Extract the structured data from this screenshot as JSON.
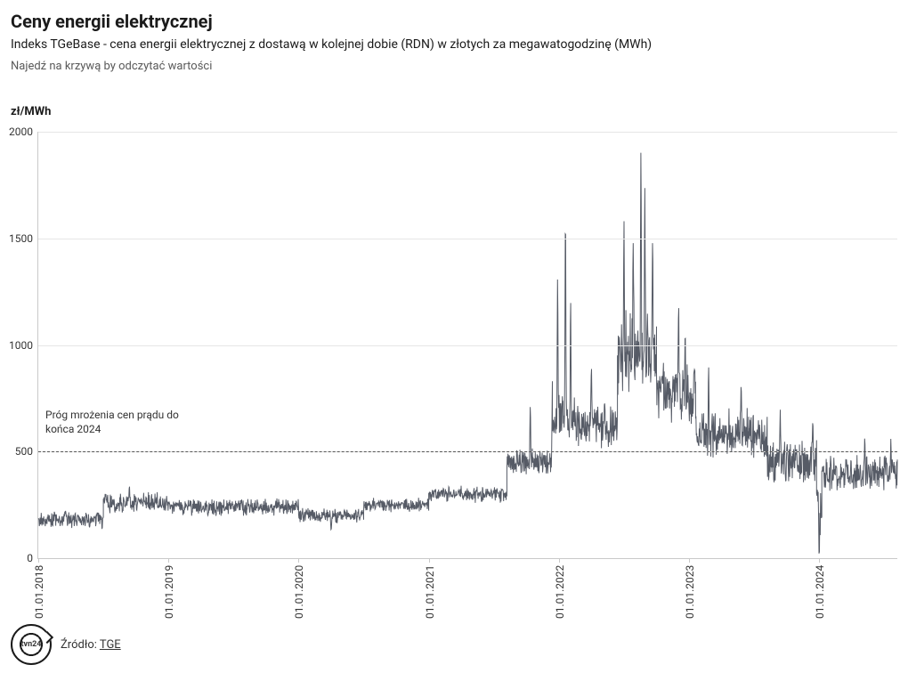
{
  "header": {
    "title": "Ceny energii elektrycznej",
    "subtitle": "Indeks TGeBase - cena energii elektrycznej z dostawą w kolejnej dobie (RDN) w złotych za megawatogodzinę (MWh)",
    "hint": "Najedź na krzywą by odczytać wartości"
  },
  "chart": {
    "type": "line",
    "y_axis_title": "zł/MWh",
    "ylim": [
      0,
      2000
    ],
    "y_ticks": [
      0,
      500,
      1000,
      1500,
      2000
    ],
    "x_domain_years": [
      2018.0,
      2024.6
    ],
    "x_ticks": [
      {
        "pos": 2018.0,
        "label": "01.01.2018"
      },
      {
        "pos": 2019.0,
        "label": "01.01.2019"
      },
      {
        "pos": 2020.0,
        "label": "01.01.2020"
      },
      {
        "pos": 2021.0,
        "label": "01.01.2021"
      },
      {
        "pos": 2022.0,
        "label": "01.01.2022"
      },
      {
        "pos": 2023.0,
        "label": "01.01.2023"
      },
      {
        "pos": 2024.0,
        "label": "01.01.2024"
      }
    ],
    "threshold": {
      "value": 500,
      "label": "Próg mrożenia cen prądu do końca 2024"
    },
    "line_color": "#565b66",
    "line_width": 1,
    "grid_color": "#e6e6e6",
    "axis_color": "#c9c9c9",
    "background_color": "#ffffff",
    "threshold_color": "#565656",
    "title_fontsize": 20,
    "subtitle_fontsize": 14,
    "tick_fontsize": 12,
    "series": {
      "segments": [
        {
          "from": 2018.0,
          "to": 2018.5,
          "base": 180,
          "noise": 55,
          "spikes": []
        },
        {
          "from": 2018.5,
          "to": 2019.0,
          "base": 260,
          "noise": 70,
          "spikes": [
            {
              "at": 2018.7,
              "val": 340
            }
          ]
        },
        {
          "from": 2019.0,
          "to": 2020.0,
          "base": 240,
          "noise": 55,
          "spikes": []
        },
        {
          "from": 2020.0,
          "to": 2020.5,
          "base": 200,
          "noise": 50,
          "spikes": [
            {
              "at": 2020.25,
              "val": 130
            }
          ]
        },
        {
          "from": 2020.5,
          "to": 2021.0,
          "base": 250,
          "noise": 45,
          "spikes": []
        },
        {
          "from": 2021.0,
          "to": 2021.6,
          "base": 300,
          "noise": 55,
          "spikes": []
        },
        {
          "from": 2021.6,
          "to": 2021.95,
          "base": 450,
          "noise": 90,
          "spikes": [
            {
              "at": 2021.78,
              "val": 720
            },
            {
              "at": 2021.95,
              "val": 830
            }
          ]
        },
        {
          "from": 2021.95,
          "to": 2022.15,
          "base": 650,
          "noise": 160,
          "spikes": [
            {
              "at": 2021.99,
              "val": 1320
            },
            {
              "at": 2022.05,
              "val": 1630
            },
            {
              "at": 2022.09,
              "val": 1220
            }
          ]
        },
        {
          "from": 2022.15,
          "to": 2022.45,
          "base": 620,
          "noise": 150,
          "spikes": [
            {
              "at": 2022.25,
              "val": 900
            }
          ]
        },
        {
          "from": 2022.45,
          "to": 2022.75,
          "base": 950,
          "noise": 280,
          "spikes": [
            {
              "at": 2022.5,
              "val": 1590
            },
            {
              "at": 2022.57,
              "val": 1490
            },
            {
              "at": 2022.63,
              "val": 1920
            },
            {
              "at": 2022.66,
              "val": 1740
            },
            {
              "at": 2022.72,
              "val": 1500
            }
          ]
        },
        {
          "from": 2022.75,
          "to": 2023.05,
          "base": 780,
          "noise": 200,
          "spikes": [
            {
              "at": 2022.92,
              "val": 1200
            },
            {
              "at": 2022.97,
              "val": 1050
            }
          ]
        },
        {
          "from": 2023.05,
          "to": 2023.6,
          "base": 580,
          "noise": 160,
          "spikes": [
            {
              "at": 2023.15,
              "val": 900
            },
            {
              "at": 2023.4,
              "val": 820
            }
          ]
        },
        {
          "from": 2023.6,
          "to": 2023.98,
          "base": 450,
          "noise": 150,
          "spikes": [
            {
              "at": 2023.7,
              "val": 700
            },
            {
              "at": 2023.95,
              "val": 640
            }
          ]
        },
        {
          "from": 2023.98,
          "to": 2024.02,
          "base": 250,
          "noise": 180,
          "spikes": [
            {
              "at": 2024.0,
              "val": 5
            }
          ]
        },
        {
          "from": 2024.02,
          "to": 2024.6,
          "base": 400,
          "noise": 120,
          "spikes": [
            {
              "at": 2024.35,
              "val": 570
            },
            {
              "at": 2024.55,
              "val": 560
            }
          ]
        }
      ],
      "points_per_year": 360
    }
  },
  "footer": {
    "logo_text": "tvn24",
    "source_prefix": "Źródło: ",
    "source_name": "TGE"
  }
}
